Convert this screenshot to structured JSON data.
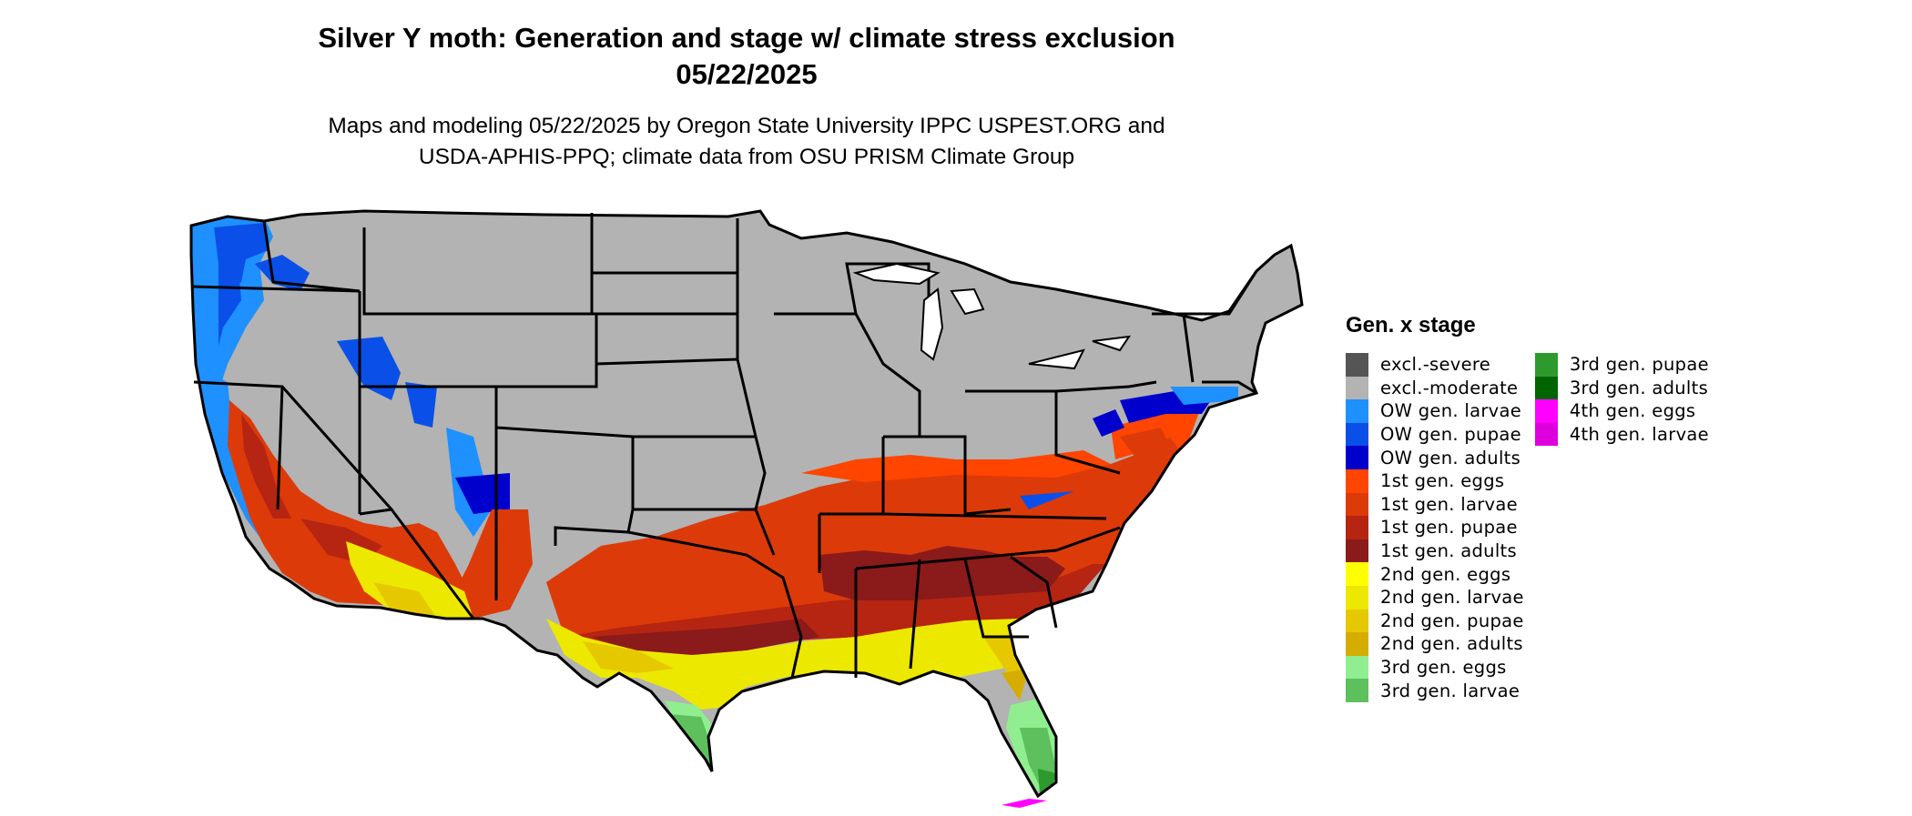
{
  "header": {
    "title_line1": "Silver Y moth: Generation and stage w/ climate stress exclusion",
    "title_line2": "05/22/2025",
    "subtitle_line1": "Maps and modeling 05/22/2025 by Oregon State University IPPC USPEST.ORG and",
    "subtitle_line2": "USDA-APHIS-PPQ; climate data from OSU PRISM Climate Group"
  },
  "legend": {
    "title": "Gen. x stage",
    "columns": [
      [
        {
          "label": "excl.-severe",
          "color": "#555555"
        },
        {
          "label": "excl.-moderate",
          "color": "#b3b3b3"
        },
        {
          "label": "OW gen. larvae",
          "color": "#1e90ff"
        },
        {
          "label": "OW gen. pupae",
          "color": "#0a50e8"
        },
        {
          "label": "OW gen. adults",
          "color": "#0000cd"
        },
        {
          "label": "1st gen. eggs",
          "color": "#ff4500"
        },
        {
          "label": "1st gen. larvae",
          "color": "#dd3a0a"
        },
        {
          "label": "1st gen. pupae",
          "color": "#b52512"
        },
        {
          "label": "1st gen. adults",
          "color": "#8b1a1a"
        },
        {
          "label": "2nd gen. eggs",
          "color": "#ffff00"
        },
        {
          "label": "2nd gen. larvae",
          "color": "#ede800"
        },
        {
          "label": "2nd gen. pupae",
          "color": "#e6c800"
        },
        {
          "label": "2nd gen. adults",
          "color": "#d4ad00"
        },
        {
          "label": "3rd gen. eggs",
          "color": "#90ee90"
        },
        {
          "label": "3rd gen. larvae",
          "color": "#5dc05d"
        }
      ],
      [
        {
          "label": "3rd gen. pupae",
          "color": "#2e9a2e"
        },
        {
          "label": "3rd gen. adults",
          "color": "#006400"
        },
        {
          "label": "4th gen. eggs",
          "color": "#ff00ff"
        },
        {
          "label": "4th gen. larvae",
          "color": "#dd00dd"
        }
      ]
    ]
  }
}
